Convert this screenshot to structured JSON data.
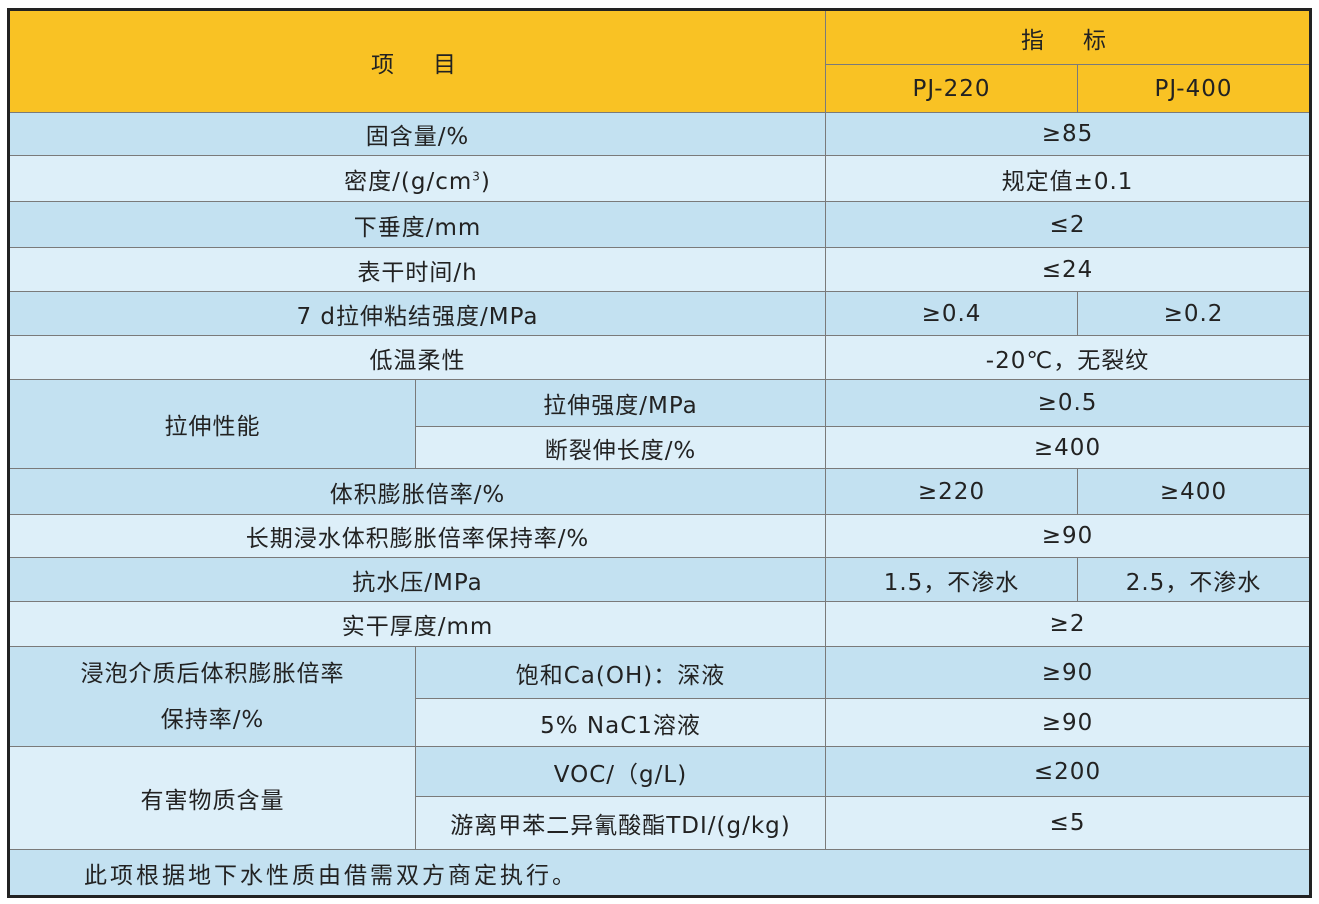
{
  "header": {
    "item": "项　目",
    "indicator": "指　标",
    "models": [
      "PJ-220",
      "PJ-400"
    ]
  },
  "colors": {
    "header": "#F9C224",
    "row_dark": "#C3E1F1",
    "row_light": "#DDEFF9"
  },
  "rows": [
    {
      "item": "固含量/%",
      "value": "≥85"
    },
    {
      "item_prefix": "密度/(g/cm",
      "item_sup": "3",
      "item_suffix": ")",
      "value": "规定值±0.1"
    },
    {
      "item": "下垂度/mm",
      "value": "≤2"
    },
    {
      "item": "表干时间/h",
      "value": "≤24"
    },
    {
      "item": "7 d拉伸粘结强度/MPa",
      "v1": "≥0.4",
      "v2": "≥0.2"
    },
    {
      "item": "低温柔性",
      "value": "-20℃，无裂纹"
    },
    {
      "group": "拉伸性能",
      "sub": [
        {
          "item": "拉伸强度/MPa",
          "value": "≥0.5"
        },
        {
          "item": "断裂伸长度/%",
          "value": "≥400"
        }
      ]
    },
    {
      "item": "体积膨胀倍率/%",
      "v1": "≥220",
      "v2": "≥400"
    },
    {
      "item": "长期浸水体积膨胀倍率保持率/%",
      "value": "≥90"
    },
    {
      "item": "抗水压/MPa",
      "v1": "1.5，不渗水",
      "v2": "2.5，不渗水"
    },
    {
      "item": "实干厚度/mm",
      "value": "≥2"
    },
    {
      "group_line1": "浸泡介质后体积膨胀倍率",
      "group_line2": "保持率/%",
      "sub": [
        {
          "item": "饱和Ca(OH)：深液",
          "value": "≥90"
        },
        {
          "item": "5% NaC1溶液",
          "value": "≥90"
        }
      ]
    },
    {
      "group": "有害物质含量",
      "sub": [
        {
          "item": "VOC/（g/L)",
          "value": "≤200"
        },
        {
          "item": "游离甲苯二异氰酸酯TDI/(g/kg)",
          "value": "≤5"
        }
      ]
    }
  ],
  "note": "此项根据地下水性质由借需双方商定执行。"
}
